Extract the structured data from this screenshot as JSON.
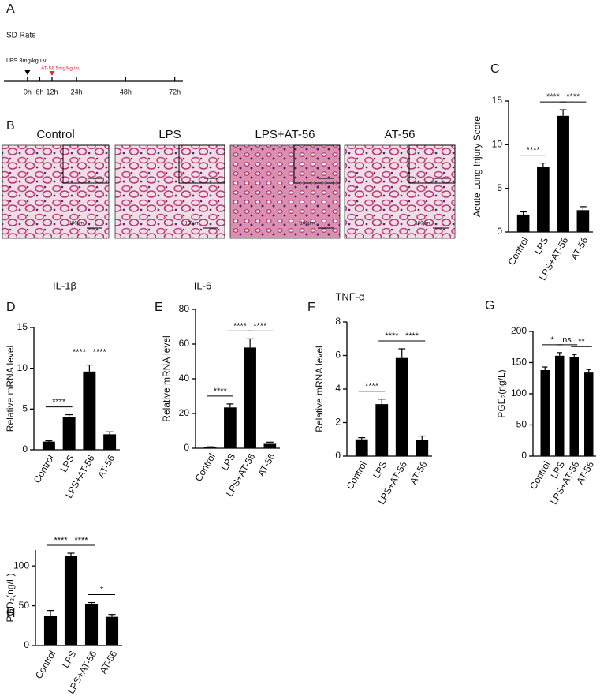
{
  "panel_labels": [
    "A",
    "B",
    "C",
    "D",
    "E",
    "F",
    "G",
    "H"
  ],
  "timeline": {
    "type": "timeline",
    "subject": "SD Rats",
    "xlim": [
      -11.5,
      76
    ],
    "xticks": [
      {
        "value": 0,
        "label": "0h"
      },
      {
        "value": 6,
        "label": "6h"
      },
      {
        "value": 12,
        "label": "12h"
      },
      {
        "value": 24,
        "label": "24h"
      },
      {
        "value": 48,
        "label": "48h"
      },
      {
        "value": 72,
        "label": "72h"
      }
    ],
    "events": [
      {
        "label": "LPS 3mg/kg i.v.",
        "x": 0,
        "color": "#000000"
      },
      {
        "label": "AT-56 5mg/kg i.v.",
        "x": 12,
        "color": "#e0303a"
      }
    ]
  },
  "histology": {
    "groups": [
      "Control",
      "LPS",
      "LPS+AT-56",
      "AT-56"
    ],
    "scale_bar": "100μm"
  },
  "chart_data": [
    {
      "type": "bar",
      "y_label": "Acute Lung Injury Score",
      "categories": [
        "Control",
        "LPS",
        "LPS+AT-56",
        "AT-56"
      ],
      "values": [
        2.0,
        7.5,
        13.3,
        2.5
      ],
      "errors": [
        0.3,
        0.4,
        0.7,
        0.4
      ],
      "color": "#000000",
      "ylim": [
        0,
        15
      ],
      "yticks": [
        0,
        5,
        10,
        15
      ],
      "significance": [
        {
          "pair": [
            "Control",
            "LPS"
          ],
          "label": "****"
        },
        {
          "pair": [
            "LPS",
            "LPS+AT-56"
          ],
          "label": "****"
        },
        {
          "pair": [
            "LPS+AT-56",
            "AT-56"
          ],
          "label": "****"
        }
      ]
    },
    {
      "type": "bar",
      "title": "IL-1β",
      "y_label": "Relative mRNA level",
      "categories": [
        "Control",
        "LPS",
        "LPS+AT-56",
        "AT-56"
      ],
      "values": [
        1.0,
        4.0,
        9.6,
        1.9
      ],
      "errors": [
        0.1,
        0.3,
        0.8,
        0.3
      ],
      "color": "#000000",
      "ylim": [
        0,
        15
      ],
      "yticks": [
        0,
        5,
        10,
        15
      ],
      "significance": [
        {
          "pair": [
            "Control",
            "LPS"
          ],
          "label": "****"
        },
        {
          "pair": [
            "LPS",
            "LPS+AT-56"
          ],
          "label": "****"
        },
        {
          "pair": [
            "LPS+AT-56",
            "AT-56"
          ],
          "label": "****"
        }
      ]
    },
    {
      "type": "bar",
      "title": "IL-6",
      "y_label": "Relative mRNA level",
      "categories": [
        "Control",
        "LPS",
        "LPS+AT-56",
        "AT-56"
      ],
      "values": [
        0.5,
        23.5,
        58,
        2.5
      ],
      "errors": [
        0.3,
        2,
        5,
        1
      ],
      "color": "#000000",
      "ylim": [
        0,
        80
      ],
      "yticks": [
        0,
        20,
        40,
        60,
        80
      ],
      "significance": [
        {
          "pair": [
            "Control",
            "LPS"
          ],
          "label": "****"
        },
        {
          "pair": [
            "LPS",
            "LPS+AT-56"
          ],
          "label": "****"
        },
        {
          "pair": [
            "LPS+AT-56",
            "AT-56"
          ],
          "label": "****"
        }
      ]
    },
    {
      "type": "bar",
      "title": "TNF-α",
      "y_label": "Relative mRNA level",
      "categories": [
        "Control",
        "LPS",
        "LPS+AT-56",
        "AT-56"
      ],
      "values": [
        1.0,
        3.1,
        5.85,
        0.95
      ],
      "errors": [
        0.1,
        0.3,
        0.55,
        0.25
      ],
      "color": "#000000",
      "ylim": [
        0,
        8
      ],
      "yticks": [
        0,
        2,
        4,
        6,
        8
      ],
      "significance": [
        {
          "pair": [
            "Control",
            "LPS"
          ],
          "label": "****"
        },
        {
          "pair": [
            "LPS",
            "LPS+AT-56"
          ],
          "label": "****"
        },
        {
          "pair": [
            "LPS+AT-56",
            "AT-56"
          ],
          "label": "****"
        }
      ]
    },
    {
      "type": "bar",
      "y_label": "PGE₂(ng/L)",
      "categories": [
        "Control",
        "LPS",
        "LPS+AT-56",
        "AT-56"
      ],
      "values": [
        138,
        161,
        159,
        134
      ],
      "errors": [
        5,
        5,
        4,
        5
      ],
      "color": "#000000",
      "ylim": [
        0,
        200
      ],
      "yticks": [
        0,
        50,
        100,
        150,
        200
      ],
      "significance": [
        {
          "pair": [
            "Control",
            "LPS"
          ],
          "label": "*"
        },
        {
          "pair": [
            "LPS",
            "LPS+AT-56"
          ],
          "label": "ns"
        },
        {
          "pair": [
            "LPS+AT-56",
            "AT-56"
          ],
          "label": "**"
        }
      ]
    },
    {
      "type": "bar",
      "y_label": "PGD₂(ng/L)",
      "categories": [
        "Control",
        "LPS",
        "LPS+AT-56",
        "AT-56"
      ],
      "values": [
        37,
        113,
        52,
        36
      ],
      "errors": [
        7,
        3,
        2,
        3
      ],
      "color": "#000000",
      "ylim": [
        0,
        120
      ],
      "yticks": [
        0,
        50,
        100
      ],
      "significance": [
        {
          "pair": [
            "Control",
            "LPS"
          ],
          "label": "****"
        },
        {
          "pair": [
            "LPS",
            "LPS+AT-56"
          ],
          "label": "****"
        },
        {
          "pair": [
            "LPS+AT-56",
            "AT-56"
          ],
          "label": "*"
        }
      ]
    }
  ]
}
